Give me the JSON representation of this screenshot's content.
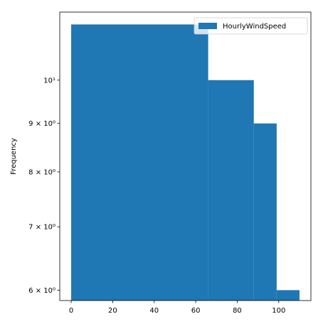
{
  "chart_data": {
    "type": "bar",
    "subtype": "histogram",
    "title": "",
    "xlabel": "",
    "ylabel": "Frequency",
    "y_scale": "log",
    "xlim": [
      -5.5,
      115.5
    ],
    "ylim": [
      5.85,
      11.8
    ],
    "bins": [
      {
        "x0": 0,
        "x1": 66,
        "count": 11.45
      },
      {
        "x0": 66,
        "x1": 88,
        "count": 10
      },
      {
        "x0": 88,
        "x1": 99,
        "count": 9
      },
      {
        "x0": 99,
        "x1": 110,
        "count": 6
      }
    ],
    "series": [
      {
        "name": "HourlyWindSpeed",
        "color": "#1f77b4"
      }
    ],
    "x_ticks": [
      {
        "value": 0,
        "label": "0"
      },
      {
        "value": 20,
        "label": "20"
      },
      {
        "value": 40,
        "label": "40"
      },
      {
        "value": 60,
        "label": "60"
      },
      {
        "value": 80,
        "label": "80"
      },
      {
        "value": 100,
        "label": "100"
      }
    ],
    "y_ticks": [
      {
        "value": 6,
        "label": "6 × 10⁰"
      },
      {
        "value": 7,
        "label": "7 × 10⁰"
      },
      {
        "value": 8,
        "label": "8 × 10⁰"
      },
      {
        "value": 9,
        "label": "9 × 10⁰"
      },
      {
        "value": 10,
        "label": "10¹"
      }
    ],
    "legend": {
      "position": "top-right"
    },
    "grid": false
  }
}
